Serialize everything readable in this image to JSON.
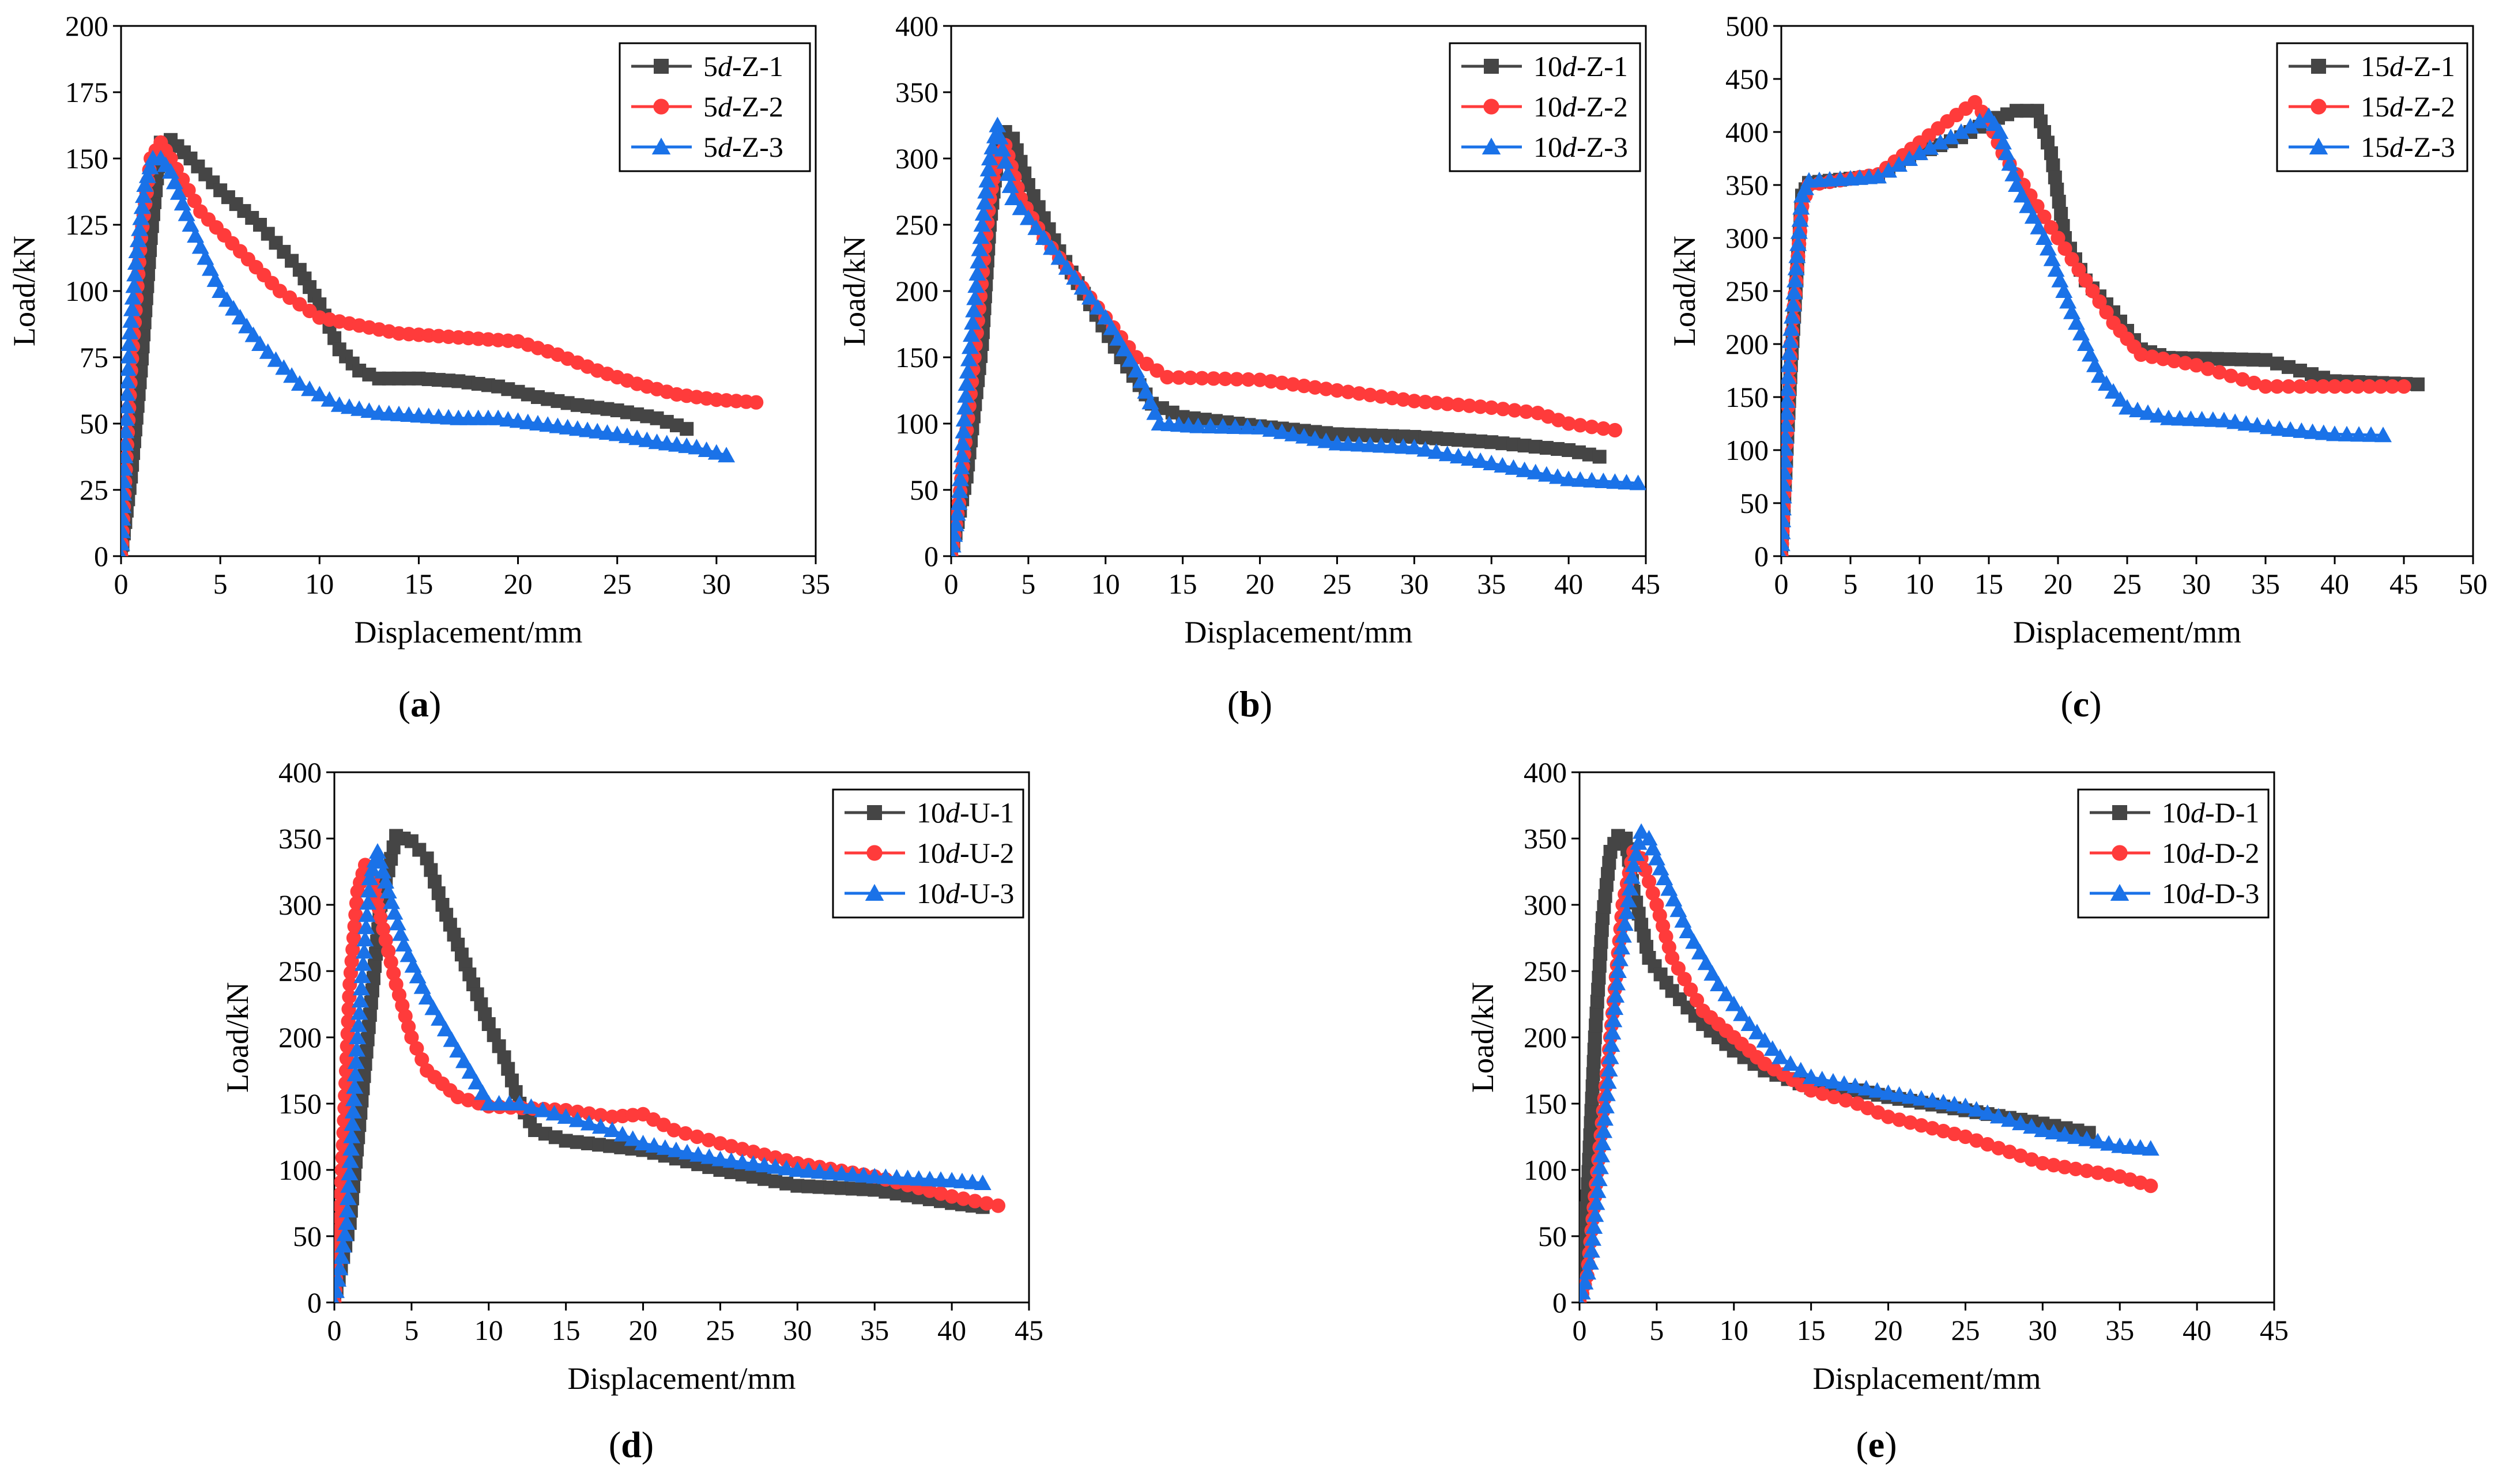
{
  "figure": {
    "panels": [
      {
        "id": "a",
        "caption_open": "(",
        "caption_letter": "a",
        "caption_close": ")"
      },
      {
        "id": "b",
        "caption_open": "(",
        "caption_letter": "b",
        "caption_close": ")"
      },
      {
        "id": "c",
        "caption_open": "(",
        "caption_letter": "c",
        "caption_close": ")"
      },
      {
        "id": "d",
        "caption_open": "(",
        "caption_letter": "d",
        "caption_close": ")"
      },
      {
        "id": "e",
        "caption_open": "(",
        "caption_letter": "e",
        "caption_close": ")"
      }
    ]
  },
  "series_colors": [
    "#454545",
    "#ff3b3b",
    "#1a72e8"
  ],
  "series_markers": [
    "square",
    "circle",
    "triangle"
  ],
  "chart_data": [
    {
      "panel": "a",
      "type": "line",
      "xlabel": "Displacement/mm",
      "ylabel": "Load/kN",
      "xlim": [
        0,
        35
      ],
      "ylim": [
        0,
        200
      ],
      "xticks": [
        0,
        5,
        10,
        15,
        20,
        25,
        30,
        35
      ],
      "yticks": [
        0,
        25,
        50,
        75,
        100,
        125,
        150,
        175,
        200
      ],
      "legend_position": "top-right",
      "series": [
        {
          "name_prefix": "5",
          "name_italic": "d",
          "name_suffix": "-Z-1",
          "x": [
            0,
            0.5,
            1.0,
            1.5,
            2.0,
            2.5,
            3.5,
            5,
            7,
            9,
            10,
            11,
            12,
            13,
            15,
            17,
            19,
            21,
            23,
            25,
            27,
            28.5
          ],
          "y": [
            0,
            30,
            70,
            120,
            156,
            157,
            150,
            138,
            125,
            108,
            95,
            78,
            70,
            67,
            67,
            66,
            64,
            60,
            57,
            55,
            52,
            48
          ]
        },
        {
          "name_prefix": "5",
          "name_italic": "d",
          "name_suffix": "-Z-2",
          "x": [
            0,
            0.5,
            1.0,
            1.5,
            2.0,
            2.5,
            4,
            6,
            8,
            10,
            12,
            14,
            16,
            18,
            20,
            22,
            24,
            26,
            28,
            30,
            32
          ],
          "y": [
            0,
            70,
            120,
            150,
            156,
            150,
            130,
            115,
            100,
            90,
            87,
            84,
            83,
            82,
            81,
            76,
            70,
            65,
            61,
            59,
            58
          ]
        },
        {
          "name_prefix": "5",
          "name_italic": "d",
          "name_suffix": "-Z-3",
          "x": [
            0,
            0.4,
            0.8,
            1.2,
            1.6,
            2.0,
            2.5,
            3.5,
            5,
            7,
            9,
            11,
            13,
            15,
            17,
            19,
            21,
            23,
            25,
            27,
            29,
            30.5
          ],
          "y": [
            0,
            80,
            115,
            140,
            150,
            150,
            145,
            125,
            100,
            80,
            65,
            57,
            54,
            53,
            52,
            52,
            50,
            48,
            46,
            43,
            41,
            38
          ]
        }
      ]
    },
    {
      "panel": "b",
      "type": "line",
      "xlabel": "Displacement/mm",
      "ylabel": "Load/kN",
      "xlim": [
        0,
        45
      ],
      "ylim": [
        0,
        400
      ],
      "xticks": [
        0,
        5,
        10,
        15,
        20,
        25,
        30,
        35,
        40,
        45
      ],
      "yticks": [
        0,
        50,
        100,
        150,
        200,
        250,
        300,
        350,
        400
      ],
      "legend_position": "top-right",
      "series": [
        {
          "name_prefix": "10",
          "name_italic": "d",
          "name_suffix": "-Z-1",
          "x": [
            0,
            1,
            2,
            2.5,
            3,
            3.5,
            4,
            5,
            7,
            9,
            11,
            13,
            15,
            20,
            25,
            30,
            35,
            40,
            42
          ],
          "y": [
            0,
            60,
            160,
            250,
            300,
            320,
            315,
            280,
            230,
            190,
            150,
            115,
            105,
            98,
            92,
            90,
            86,
            80,
            75
          ]
        },
        {
          "name_prefix": "10",
          "name_italic": "d",
          "name_suffix": "-Z-2",
          "x": [
            0,
            0.5,
            1.5,
            2.5,
            3.0,
            3.5,
            4.5,
            6,
            8,
            10,
            12,
            14,
            20,
            25,
            30,
            35,
            38,
            40,
            43
          ],
          "y": [
            0,
            40,
            150,
            270,
            300,
            310,
            270,
            240,
            210,
            180,
            150,
            135,
            133,
            125,
            117,
            112,
            108,
            100,
            95
          ]
        },
        {
          "name_prefix": "10",
          "name_italic": "d",
          "name_suffix": "-Z-3",
          "x": [
            0,
            0.5,
            1.0,
            2.0,
            2.5,
            3.0,
            4.0,
            6,
            8,
            10,
            12,
            13.5,
            16,
            20,
            25,
            30,
            35,
            40,
            44.5
          ],
          "y": [
            0,
            40,
            130,
            250,
            300,
            325,
            270,
            240,
            210,
            180,
            140,
            100,
            98,
            97,
            85,
            82,
            70,
            58,
            55
          ]
        }
      ]
    },
    {
      "panel": "c",
      "type": "line",
      "xlabel": "Displacement/mm",
      "ylabel": "Load/kN",
      "xlim": [
        0,
        50
      ],
      "ylim": [
        0,
        500
      ],
      "xticks": [
        0,
        5,
        10,
        15,
        20,
        25,
        30,
        35,
        40,
        45,
        50
      ],
      "yticks": [
        0,
        50,
        100,
        150,
        200,
        250,
        300,
        350,
        400,
        450,
        500
      ],
      "legend_position": "top-right",
      "series": [
        {
          "name_prefix": "15",
          "name_italic": "d",
          "name_suffix": "-Z-1",
          "x": [
            0,
            0.7,
            1.5,
            2,
            5,
            7,
            10,
            13,
            15,
            17,
            18.5,
            19.5,
            20.5,
            22,
            24,
            26,
            28,
            35,
            40,
            46
          ],
          "y": [
            0,
            180,
            340,
            352,
            356,
            358,
            380,
            395,
            410,
            420,
            420,
            380,
            300,
            260,
            230,
            195,
            187,
            185,
            165,
            162
          ]
        },
        {
          "name_prefix": "15",
          "name_italic": "d",
          "name_suffix": "-Z-2",
          "x": [
            0,
            0.7,
            1.5,
            2,
            5,
            7,
            10,
            12,
            14,
            15,
            16,
            18,
            20,
            22,
            24,
            26,
            30,
            35,
            40,
            45
          ],
          "y": [
            0,
            200,
            330,
            350,
            356,
            360,
            390,
            410,
            428,
            410,
            380,
            340,
            300,
            260,
            220,
            190,
            180,
            160,
            160,
            160
          ]
        },
        {
          "name_prefix": "15",
          "name_italic": "d",
          "name_suffix": "-Z-3",
          "x": [
            0,
            0.5,
            1.5,
            2,
            5,
            7,
            10,
            13,
            15,
            15.8,
            17,
            19,
            21,
            23,
            25,
            28,
            32,
            36,
            40,
            43.5
          ],
          "y": [
            0,
            180,
            340,
            354,
            356,
            358,
            380,
            400,
            415,
            400,
            350,
            300,
            230,
            170,
            140,
            130,
            128,
            120,
            115,
            114
          ]
        }
      ]
    },
    {
      "panel": "d",
      "type": "line",
      "xlabel": "Displacement/mm",
      "ylabel": "Load/kN",
      "xlim": [
        0,
        45
      ],
      "ylim": [
        0,
        400
      ],
      "xticks": [
        0,
        5,
        10,
        15,
        20,
        25,
        30,
        35,
        40,
        45
      ],
      "yticks": [
        0,
        50,
        100,
        150,
        200,
        250,
        300,
        350,
        400
      ],
      "legend_position": "top-right",
      "series": [
        {
          "name_prefix": "10",
          "name_italic": "d",
          "name_suffix": "-U-1",
          "x": [
            0,
            1,
            2,
            3,
            4,
            5,
            6,
            7,
            8,
            9,
            10,
            11,
            12,
            13,
            15,
            20,
            25,
            30,
            35,
            40,
            42
          ],
          "y": [
            0,
            60,
            180,
            300,
            352,
            348,
            335,
            300,
            270,
            240,
            210,
            185,
            150,
            130,
            122,
            115,
            100,
            88,
            85,
            75,
            72
          ]
        },
        {
          "name_prefix": "10",
          "name_italic": "d",
          "name_suffix": "-U-2",
          "x": [
            0,
            0.5,
            1.0,
            1.5,
            2.0,
            2.5,
            3.0,
            4,
            5,
            6,
            8,
            10,
            15,
            18,
            20,
            22,
            25,
            30,
            35,
            40,
            43
          ],
          "y": [
            0,
            100,
            240,
            310,
            330,
            320,
            290,
            240,
            200,
            175,
            155,
            148,
            145,
            140,
            142,
            130,
            120,
            105,
            95,
            80,
            73
          ]
        },
        {
          "name_prefix": "10",
          "name_italic": "d",
          "name_suffix": "-U-3",
          "x": [
            0,
            0.8,
            1.5,
            2.3,
            2.8,
            3.5,
            4.5,
            6,
            8,
            10,
            12,
            15,
            18,
            20,
            25,
            30,
            35,
            40,
            42
          ],
          "y": [
            0,
            60,
            200,
            320,
            340,
            310,
            270,
            230,
            190,
            150,
            150,
            140,
            130,
            120,
            108,
            100,
            95,
            92,
            90
          ]
        }
      ]
    },
    {
      "panel": "e",
      "type": "line",
      "xlabel": "Displacement/mm",
      "ylabel": "Load/kN",
      "xlim": [
        0,
        45
      ],
      "ylim": [
        0,
        400
      ],
      "xticks": [
        0,
        5,
        10,
        15,
        20,
        25,
        30,
        35,
        40,
        45
      ],
      "yticks": [
        0,
        50,
        100,
        150,
        200,
        250,
        300,
        350,
        400
      ],
      "legend_position": "top-right",
      "series": [
        {
          "name_prefix": "10",
          "name_italic": "d",
          "name_suffix": "-D-1",
          "x": [
            0,
            0.5,
            1.0,
            1.5,
            2.0,
            2.5,
            3.0,
            3.5,
            4.5,
            6,
            8,
            10,
            12,
            15,
            18,
            20,
            25,
            30,
            33
          ],
          "y": [
            0,
            80,
            200,
            290,
            340,
            352,
            350,
            310,
            260,
            235,
            210,
            190,
            175,
            162,
            160,
            155,
            145,
            135,
            128
          ]
        },
        {
          "name_prefix": "10",
          "name_italic": "d",
          "name_suffix": "-D-2",
          "x": [
            0,
            0.5,
            1.0,
            2.0,
            2.8,
            3.5,
            4.0,
            5,
            6,
            8,
            10,
            12,
            15,
            18,
            20,
            25,
            30,
            35,
            37
          ],
          "y": [
            0,
            20,
            80,
            200,
            300,
            340,
            335,
            300,
            260,
            220,
            200,
            180,
            160,
            150,
            140,
            125,
            105,
            95,
            88
          ]
        },
        {
          "name_prefix": "10",
          "name_italic": "d",
          "name_suffix": "-D-3",
          "x": [
            0,
            0.7,
            1.5,
            2.5,
            3.5,
            4.0,
            4.5,
            5.5,
            7,
            9,
            11,
            13,
            15,
            20,
            25,
            30,
            35,
            37
          ],
          "y": [
            0,
            30,
            120,
            250,
            330,
            355,
            350,
            320,
            280,
            240,
            210,
            185,
            170,
            158,
            148,
            130,
            118,
            116
          ]
        }
      ]
    }
  ]
}
